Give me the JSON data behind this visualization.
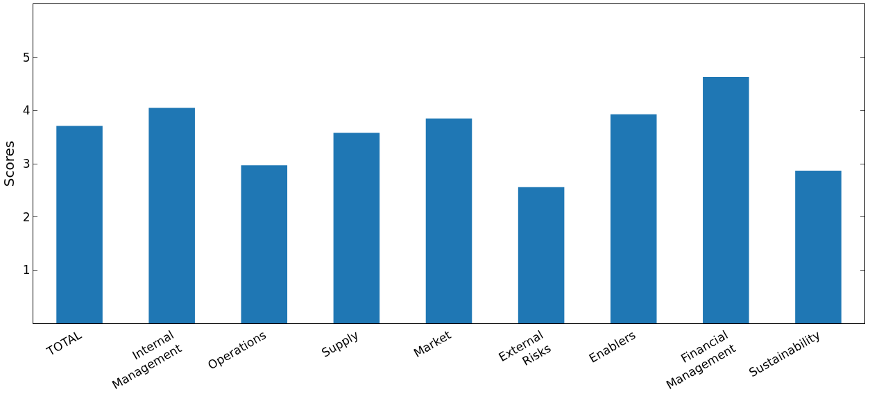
{
  "chart_data": {
    "type": "bar",
    "ylabel": "Scores",
    "categories": [
      "TOTAL",
      "Internal\nManagement",
      "Operations",
      "Supply",
      "Market",
      "External\nRisks",
      "Enablers",
      "Financial\nManagement",
      "Sustainability"
    ],
    "series": [
      {
        "color": "#1f77b4",
        "values": [
          3.71,
          4.05,
          2.97,
          3.58,
          3.85,
          2.56,
          3.93,
          4.63,
          2.87
        ]
      }
    ],
    "ylim": [
      0,
      6
    ],
    "yticks": [
      1,
      2,
      3,
      4,
      5
    ],
    "grid": false
  }
}
